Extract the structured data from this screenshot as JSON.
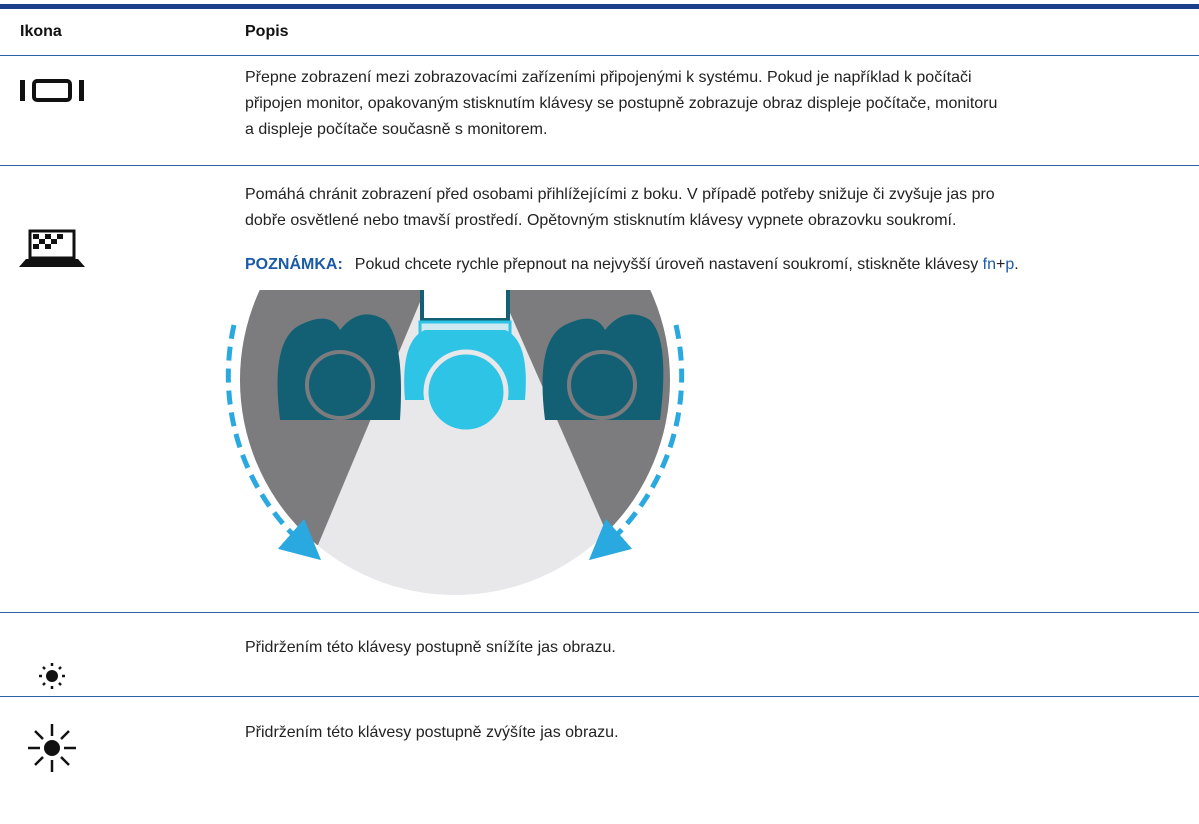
{
  "table": {
    "header": [
      "Ikona",
      "Popis"
    ],
    "rows": [
      {
        "lines": [
          "Přepne zobrazení mezi zobrazovacími zařízeními připojenými k systému. Pokud je například k počítači",
          "připojen monitor, opakovaným stisknutím klávesy se postupně zobrazuje obraz displeje počítače, monitoru",
          "a displeje počítače současně s monitorem."
        ]
      },
      {
        "lines": [
          "Pomáhá chránit zobrazení před osobami přihlížejícími z boku. V případě potřeby snižuje či zvyšuje jas pro",
          "dobře osvětlené nebo tmavší prostředí. Opětovným stisknutím klávesy vypnete obrazovku soukromí."
        ],
        "note": {
          "label": "POZNÁMKA:",
          "text": "Pokud chcete rychle přepnout na nejvyšší úroveň nastavení soukromí, stiskněte klávesy",
          "key1": "fn",
          "plus": "+",
          "key2": "p",
          "end": "."
        }
      },
      {
        "lines": [
          "Přidržením této klávesy postupně snížíte jas obrazu."
        ]
      },
      {
        "lines": [
          "Přidržením této klávesy postupně zvýšíte jas obrazu."
        ]
      }
    ]
  }
}
